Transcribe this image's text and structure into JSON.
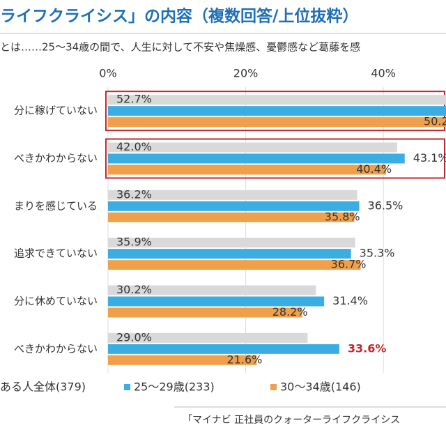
{
  "chart_data": {
    "type": "hbar",
    "title": "ライフクライシス」の内容（複数回答/上位抜粋）",
    "subtitle": "とは……25～34歳の間で、人生に対して不安や焦燥感、憂鬱感など葛藤を感",
    "categories": [
      "分に稼げていない",
      "べきかわからない",
      "まりを感じている",
      "追求できていない",
      "分に休めていない",
      "べきかわからない"
    ],
    "series": [
      {
        "name": "ある人全体(379)",
        "color": "#d9d9d9",
        "values": [
          52.7,
          42.0,
          36.2,
          35.9,
          30.2,
          29.0
        ],
        "value_labels": [
          "52.7%",
          "42.0%",
          "36.2%",
          "35.9%",
          "30.2%",
          "29.0%"
        ]
      },
      {
        "name": "25～29歳(233)",
        "color": "#3aaee2",
        "values": [
          55,
          43.1,
          36.5,
          35.3,
          31.4,
          33.6
        ],
        "value_labels": [
          null,
          "43.1%",
          "36.5%",
          "35.3%",
          "31.4%",
          "33.6%"
        ],
        "highlight": {
          "index": 5,
          "color": "#c0282d"
        }
      },
      {
        "name": "30～34歳(146)",
        "color": "#f0a04b",
        "values": [
          50.2,
          40.4,
          35.8,
          36.7,
          28.2,
          21.6
        ],
        "value_labels": [
          "50.2%",
          "40.4%",
          "35.8%",
          "36.7%",
          "28.2%",
          "21.6%"
        ]
      }
    ],
    "boxed": [
      0,
      1
    ],
    "box_color": "#c0282d",
    "xlim": [
      0,
      49.1
    ],
    "xticks": [
      {
        "value": 0,
        "label": "0%"
      },
      {
        "value": 20,
        "label": "20%"
      },
      {
        "value": 40,
        "label": "40%"
      }
    ],
    "grid": true,
    "source": "「マイナビ 正社員のクォーターライフクライシス"
  }
}
